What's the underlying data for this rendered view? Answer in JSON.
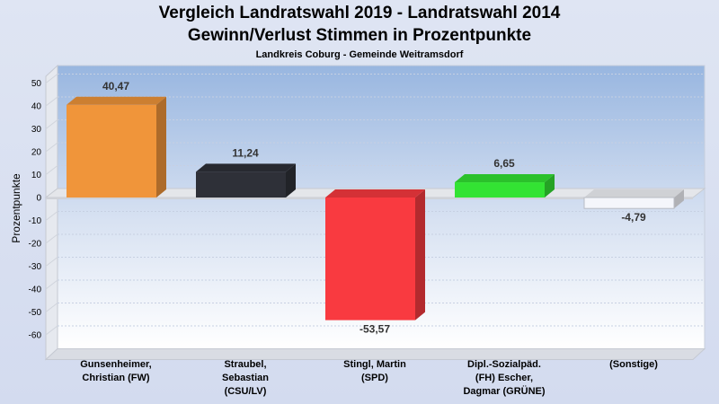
{
  "title": "Vergleich Landratswahl 2019 - Landratswahl 2014",
  "subtitle": "Gewinn/Verlust Stimmen in Prozentpunkte",
  "subsubtitle": "Landkreis Coburg - Gemeinde Weitramsdorf",
  "chart_data": {
    "type": "bar",
    "ylabel": "Prozentpunkte",
    "ylim": [
      -70,
      50
    ],
    "yticks": [
      50,
      40,
      30,
      20,
      10,
      0,
      -10,
      -20,
      -30,
      -40,
      -50,
      -60
    ],
    "categories": [
      [
        "Gunsenheimer,",
        "Christian (FW)"
      ],
      [
        "Straubel,",
        "Sebastian",
        "(CSU/LV)"
      ],
      [
        "Stingl, Martin",
        "(SPD)"
      ],
      [
        "Dipl.-Sozialpäd.",
        "(FH) Escher,",
        "Dagmar (GRÜNE)"
      ],
      [
        "(Sonstige)"
      ]
    ],
    "values": [
      40.47,
      11.24,
      -53.57,
      6.65,
      -4.79
    ],
    "value_labels": [
      "40,47",
      "11,24",
      "-53,57",
      "6,65",
      "-4,79"
    ],
    "colors": [
      "#f0953a",
      "#2e3038",
      "#f93a40",
      "#33e333",
      "#f4f6fb"
    ],
    "grid": true,
    "legend": "none"
  }
}
